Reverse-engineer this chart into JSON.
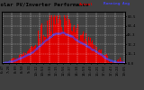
{
  "bg_color": "#404040",
  "plot_bg": "#404040",
  "bar_color": "#dd0000",
  "avg_color": "#4444ff",
  "grid_color": "#ffffff",
  "title_color": "#000000",
  "n_bars": 144,
  "peak_index": 72,
  "ylim": [
    0,
    1.1
  ],
  "right_labels": [
    "80.5",
    "64.4",
    "48.3",
    "32.2",
    "16.1",
    "0.0"
  ],
  "title_fontsize": 4.2,
  "tick_fontsize": 2.8,
  "xtick_labels": [
    "6:47",
    "7:28",
    "8:09",
    "8:50",
    "9:31",
    "10:12",
    "10:53",
    "11:34",
    "12:15",
    "12:56",
    "13:37",
    "14:18",
    "14:59",
    "15:40",
    "16:21",
    "17:02",
    "17:43",
    "18:24",
    "19:05"
  ]
}
